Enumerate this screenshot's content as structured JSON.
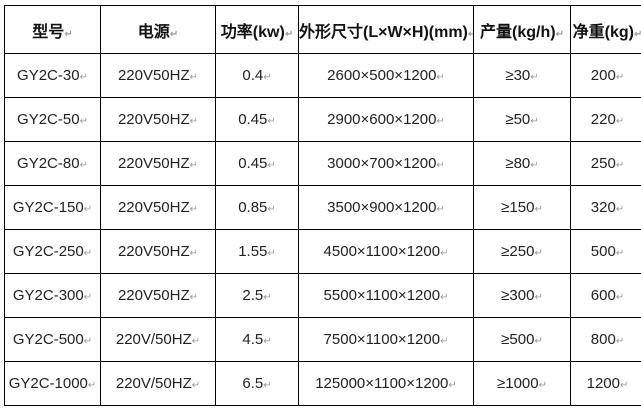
{
  "table": {
    "headers": [
      "型号",
      "电源",
      "功率(kw)",
      "外形尺寸(L×W×H)(mm)",
      "产量(kg/h)",
      "净重(kg)"
    ],
    "rows": [
      [
        "GY2C-30",
        "220V50HZ",
        "0.4",
        "2600×500×1200",
        "≥30",
        "200"
      ],
      [
        "GY2C-50",
        "220V50HZ",
        "0.45",
        "2900×600×1200",
        "≥50",
        "220"
      ],
      [
        "GY2C-80",
        "220V50HZ",
        "0.45",
        "3000×700×1200",
        "≥80",
        "250"
      ],
      [
        "GY2C-150",
        "220V50HZ",
        "0.85",
        "3500×900×1200",
        "≥150",
        "320"
      ],
      [
        "GY2C-250",
        "220V50HZ",
        "1.55",
        "4500×1100×1200",
        "≥250",
        "500"
      ],
      [
        "GY2C-300",
        "220V50HZ",
        "2.5",
        "5500×1100×1200",
        "≥300",
        "600"
      ],
      [
        "GY2C-500",
        "220V/50HZ",
        "4.5",
        "7500×1100×1200",
        "≥500",
        "800"
      ],
      [
        "GY2C-1000",
        "220V/50HZ",
        "6.5",
        "125000×1100×1200",
        "≥1000",
        "1200"
      ]
    ],
    "paragraph_mark": "↵"
  }
}
